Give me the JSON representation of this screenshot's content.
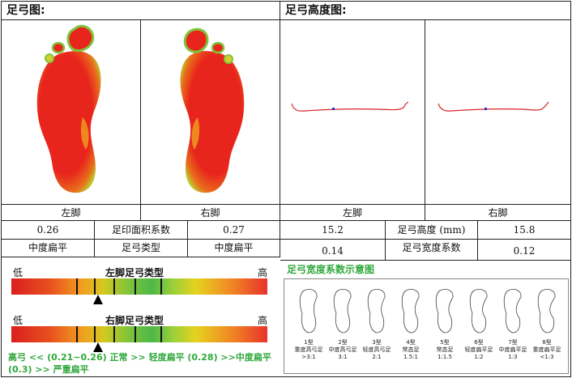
{
  "header": {
    "left_title": "足弓图:",
    "right_title": "足弓高度图:"
  },
  "captions": {
    "left_foot": "左脚",
    "right_foot": "右脚"
  },
  "table_left": {
    "r1": [
      "0.26",
      "足印面积系数",
      "0.27"
    ],
    "r2": [
      "中度扁平",
      "足弓类型",
      "中度扁平"
    ]
  },
  "table_right": {
    "r1": [
      "15.2",
      "足弓高度 (mm)",
      "15.8"
    ],
    "r2": [
      "0.14",
      "足弓宽度系数",
      "0.12"
    ]
  },
  "arch_bars": {
    "low": "低",
    "high": "高",
    "left_title": "左脚足弓类型",
    "right_title": "右脚足弓类型",
    "left_marker_fraction": 0.34,
    "right_marker_fraction": 0.34
  },
  "legend": "高弓 << (0.21~0.26) 正常 >> 轻度扁平 (0.28) >>中度扁平 (0.3) >> 严重扁平",
  "schematic": {
    "title": "足弓宽度系数示意图",
    "types": [
      {
        "label": "1型\n重度高弓足\n>3:1"
      },
      {
        "label": "2型\n中度高弓足\n3:1"
      },
      {
        "label": "3型\n轻度高弓足\n2:1"
      },
      {
        "label": "4型\n常态足\n1.5:1"
      },
      {
        "label": "5型\n常态足\n1:1.5"
      },
      {
        "label": "6型\n轻度扁平足\n1:2"
      },
      {
        "label": "7型\n中度扁平足\n1:3"
      },
      {
        "label": "8型\n重度扁平足\n<1:3"
      }
    ]
  },
  "colors": {
    "accent_green": "#2fa83a",
    "foot_red": "#e8251c",
    "foot_green": "#7fc43c",
    "curve_red": "#d9242a",
    "point_blue": "#2233cc"
  }
}
